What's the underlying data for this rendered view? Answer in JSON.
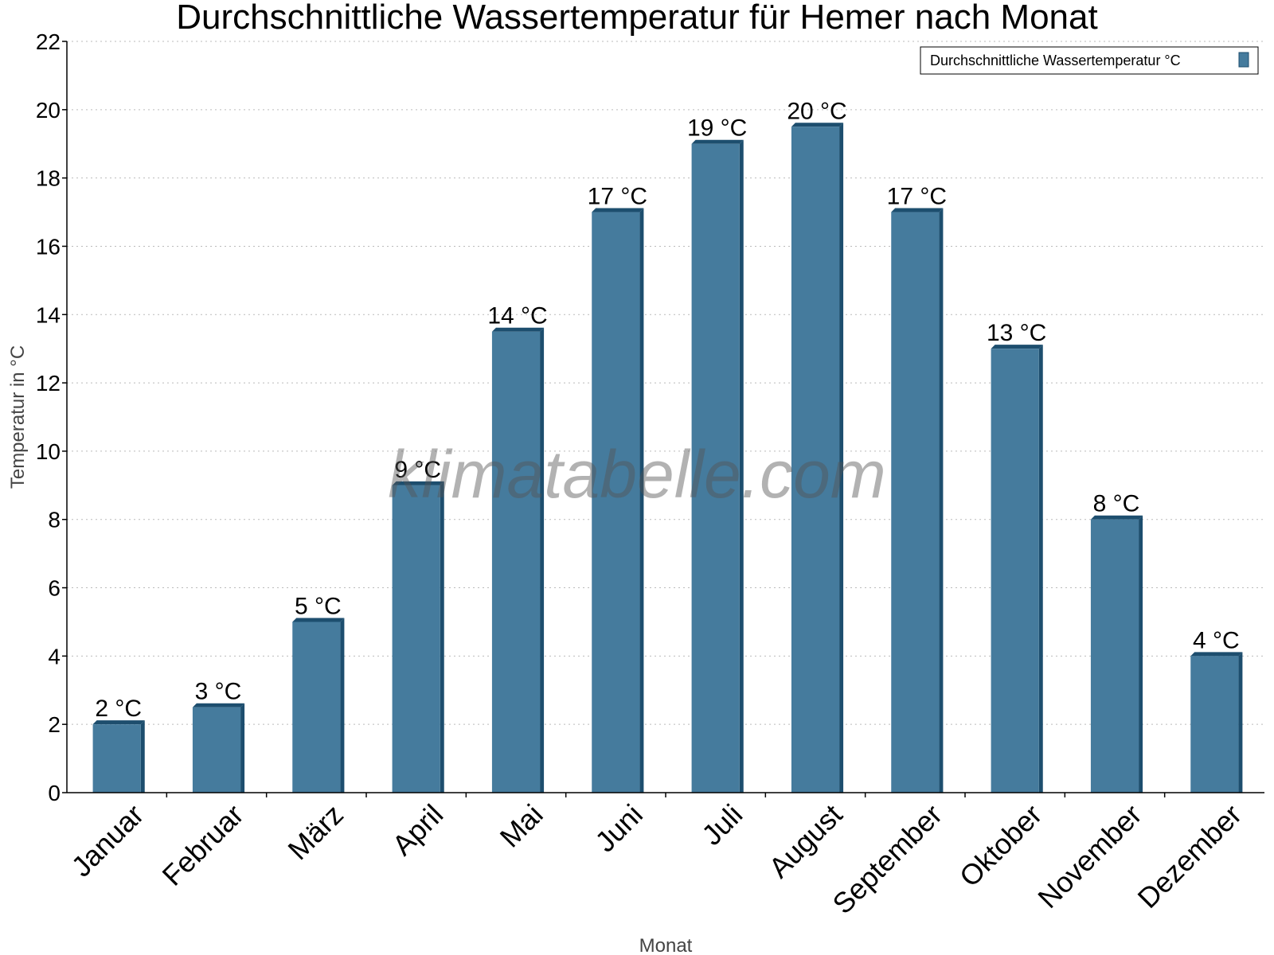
{
  "chart_data": {
    "type": "bar",
    "title": "Durchschnittliche Wassertemperatur für Hemer nach Monat",
    "xlabel": "Monat",
    "ylabel": "Temperatur in °C",
    "categories": [
      "Januar",
      "Februar",
      "März",
      "April",
      "Mai",
      "Juni",
      "Juli",
      "August",
      "September",
      "Oktober",
      "November",
      "Dezember"
    ],
    "series": [
      {
        "name": "Durchschnittliche Wassertemperatur °C",
        "values": [
          2,
          2.5,
          5,
          9,
          13.5,
          17,
          19,
          19.5,
          17,
          13,
          8,
          4
        ],
        "labels": [
          "2 °C",
          "3 °C",
          "5 °C",
          "9 °C",
          "14 °C",
          "17 °C",
          "19 °C",
          "20 °C",
          "17 °C",
          "13 °C",
          "8 °C",
          "4 °C"
        ]
      }
    ],
    "ylim": [
      0,
      22
    ],
    "yticks": [
      0,
      2,
      4,
      6,
      8,
      10,
      12,
      14,
      16,
      18,
      20,
      22
    ],
    "grid": true,
    "legend_position": "top-right",
    "bar_color": "#457b9d",
    "bar_edge_color": "#1d4e6e"
  },
  "watermark": "klimatabelle.com"
}
